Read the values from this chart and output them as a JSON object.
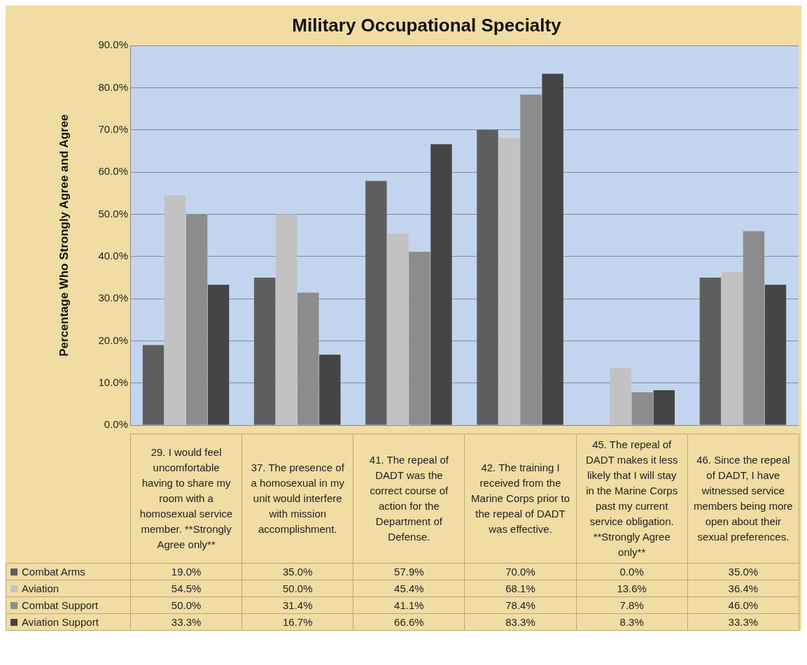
{
  "chart_data": {
    "type": "bar",
    "title": "Military Occupational Specialty",
    "ylabel": "Percentage Who Strongly Agree and Agree",
    "categories": [
      "29. I would feel uncomfortable having to share my room with a homosexual service member. **Strongly Agree only**",
      "37. The presence of a homosexual in my unit would interfere with mission accomplishment.",
      "41. The repeal of DADT was the correct course of action for the Department of Defense.",
      "42. The training I received from the Marine Corps prior to the repeal of DADT was effective.",
      "45. The repeal of DADT makes it less likely that I will stay in the Marine Corps past my current service obligation. **Strongly Agree only**",
      "46. Since the repeal of DADT, I have witnessed service members being more open about their sexual preferences."
    ],
    "series": [
      {
        "name": "Combat Arms",
        "color": "#5e5e5e",
        "values": [
          19.0,
          35.0,
          57.9,
          70.0,
          0.0,
          35.0
        ],
        "value_labels": [
          "19.0%",
          "35.0%",
          "57.9%",
          "70.0%",
          "0.0%",
          "35.0%"
        ]
      },
      {
        "name": "Aviation",
        "color": "#c2c2c2",
        "values": [
          54.5,
          50.0,
          45.4,
          68.1,
          13.6,
          36.4
        ],
        "value_labels": [
          "54.5%",
          "50.0%",
          "45.4%",
          "68.1%",
          "13.6%",
          "36.4%"
        ]
      },
      {
        "name": "Combat Support",
        "color": "#8c8c8c",
        "values": [
          50.0,
          31.4,
          41.1,
          78.4,
          7.8,
          46.0
        ],
        "value_labels": [
          "50.0%",
          "31.4%",
          "41.1%",
          "78.4%",
          "7.8%",
          "46.0%"
        ]
      },
      {
        "name": "Aviation Support",
        "color": "#454545",
        "values": [
          33.3,
          16.7,
          66.6,
          83.3,
          8.3,
          33.3
        ],
        "value_labels": [
          "33.3%",
          "16.7%",
          "66.6%",
          "83.3%",
          "8.3%",
          "33.3%"
        ]
      }
    ],
    "ylim": [
      0,
      90
    ],
    "yticks": [
      {
        "value": 0,
        "label": "0.0%"
      },
      {
        "value": 10,
        "label": "10.0%"
      },
      {
        "value": 20,
        "label": "20.0%"
      },
      {
        "value": 30,
        "label": "30.0%"
      },
      {
        "value": 40,
        "label": "40.0%"
      },
      {
        "value": 50,
        "label": "50.0%"
      },
      {
        "value": 60,
        "label": "60.0%"
      },
      {
        "value": 70,
        "label": "70.0%"
      },
      {
        "value": 80,
        "label": "80.0%"
      },
      {
        "value": 90,
        "label": "90.0%"
      }
    ],
    "grid": "y",
    "legend": "bottom left"
  }
}
